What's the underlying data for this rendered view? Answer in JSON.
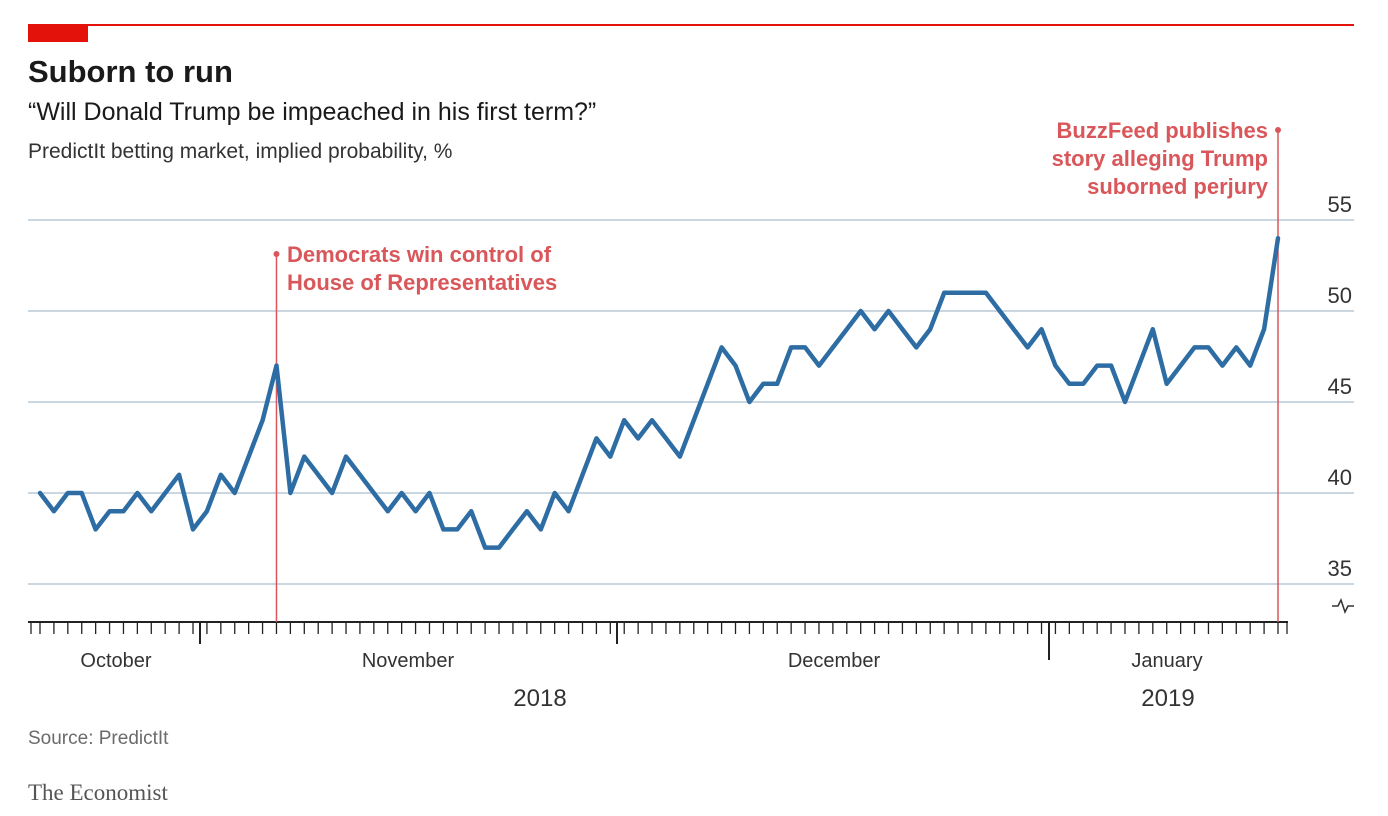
{
  "header": {
    "title": "Suborn to run",
    "subtitle": "“Will Donald Trump be impeached in his first term?”",
    "description": "PredictIt betting market, implied probability, %"
  },
  "footer": {
    "source": "Source: PredictIt",
    "brand": "The Economist"
  },
  "colors": {
    "line": "#2e6da4",
    "accent": "#e3120b",
    "annotation": "#d9575a",
    "grid": "#b8c9d6"
  },
  "chart_data": {
    "type": "line",
    "title": "Suborn to run",
    "y_axis": {
      "ticks": [
        35,
        40,
        45,
        50,
        55
      ],
      "ylim": [
        33,
        56
      ],
      "position": "right",
      "broken_axis_marker": true
    },
    "x_axis": {
      "month_labels": [
        {
          "label": "October",
          "day": 15
        },
        {
          "label": "November",
          "day": 46
        },
        {
          "label": "December",
          "day": 76
        },
        {
          "label": "January",
          "day": 107
        }
      ],
      "month_boundaries": [
        31,
        62,
        92
      ],
      "year_labels": [
        {
          "label": "2018",
          "day": 62
        },
        {
          "label": "2019",
          "day": 108
        }
      ],
      "year_boundary": 92,
      "xlim": [
        1,
        120
      ]
    },
    "series": [
      {
        "points": [
          [
            1,
            40
          ],
          [
            2,
            39
          ],
          [
            3,
            40
          ],
          [
            4,
            40
          ],
          [
            5,
            38
          ],
          [
            6,
            39
          ],
          [
            7,
            39
          ],
          [
            8,
            40
          ],
          [
            9,
            39
          ],
          [
            10,
            40
          ],
          [
            11,
            41
          ],
          [
            12,
            38
          ],
          [
            13,
            39
          ],
          [
            14,
            41
          ],
          [
            15,
            40
          ],
          [
            16,
            42
          ],
          [
            17,
            44
          ],
          [
            18,
            47
          ],
          [
            19,
            40
          ],
          [
            20,
            42
          ],
          [
            21,
            41
          ],
          [
            22,
            40
          ],
          [
            23,
            42
          ],
          [
            24,
            41
          ],
          [
            25,
            40
          ],
          [
            26,
            39
          ],
          [
            27,
            40
          ],
          [
            28,
            39
          ],
          [
            29,
            40
          ],
          [
            30,
            38
          ],
          [
            31,
            38
          ],
          [
            32,
            39
          ],
          [
            33,
            37
          ],
          [
            34,
            37
          ],
          [
            35,
            38
          ],
          [
            36,
            39
          ],
          [
            37,
            38
          ],
          [
            38,
            40
          ],
          [
            39,
            39
          ],
          [
            40,
            41
          ],
          [
            41,
            43
          ],
          [
            42,
            42
          ],
          [
            43,
            44
          ],
          [
            44,
            43
          ],
          [
            45,
            44
          ],
          [
            46,
            43
          ],
          [
            47,
            42
          ],
          [
            48,
            44
          ],
          [
            49,
            46
          ],
          [
            50,
            48
          ],
          [
            51,
            47
          ],
          [
            52,
            45
          ],
          [
            53,
            46
          ],
          [
            54,
            46
          ],
          [
            55,
            48
          ],
          [
            56,
            48
          ],
          [
            57,
            47
          ],
          [
            58,
            48
          ],
          [
            59,
            49
          ],
          [
            60,
            50
          ],
          [
            61,
            49
          ],
          [
            62,
            50
          ],
          [
            63,
            49
          ],
          [
            64,
            48
          ],
          [
            65,
            49
          ],
          [
            66,
            51
          ],
          [
            67,
            51
          ],
          [
            68,
            51
          ],
          [
            69,
            51
          ],
          [
            70,
            50
          ],
          [
            71,
            49
          ],
          [
            72,
            48
          ],
          [
            73,
            49
          ],
          [
            74,
            47
          ],
          [
            75,
            46
          ],
          [
            76,
            46
          ],
          [
            77,
            47
          ],
          [
            78,
            47
          ],
          [
            79,
            45
          ],
          [
            80,
            47
          ],
          [
            81,
            49
          ],
          [
            82,
            46
          ],
          [
            83,
            47
          ],
          [
            84,
            48
          ],
          [
            85,
            48
          ],
          [
            86,
            47
          ],
          [
            87,
            48
          ],
          [
            88,
            47
          ],
          [
            89,
            49
          ],
          [
            90,
            54
          ]
        ]
      }
    ],
    "annotations": [
      {
        "text_lines": [
          "Democrats win control of",
          "House of Representatives"
        ],
        "x": 18,
        "align": "left"
      },
      {
        "text_lines": [
          "BuzzFeed publishes",
          "story alleging Trump",
          "suborned perjury"
        ],
        "x": 90,
        "align": "right"
      }
    ]
  }
}
